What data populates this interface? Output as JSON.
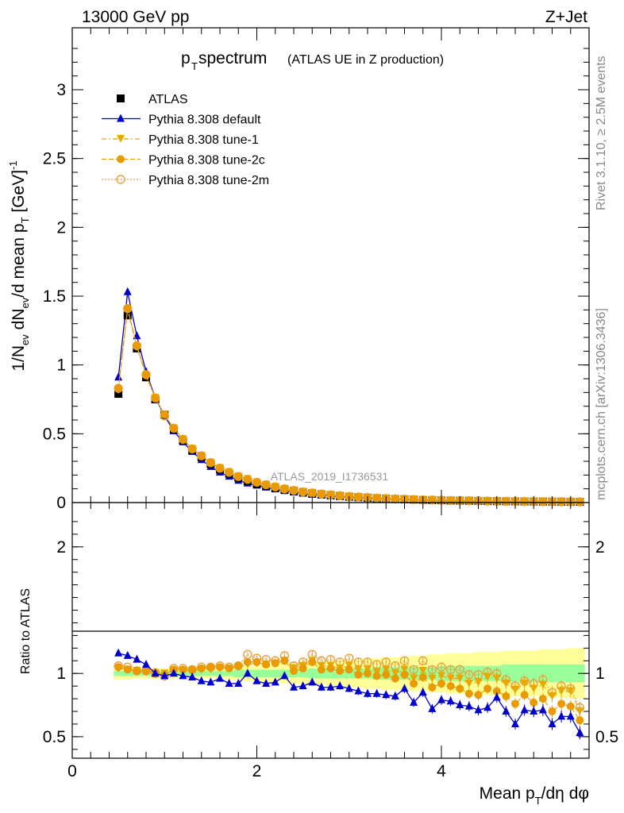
{
  "header": {
    "left": "13000 GeV pp",
    "right": "Z+Jet",
    "title_main": "p",
    "title_sub": "T",
    "title_word": " spectrum",
    "title_paren": "(ATLAS UE in Z production)"
  },
  "side": {
    "rivet": "Rivet 3.1.10, ≥ 2.5M events",
    "mcplots": "mcplots.cern.ch [arXiv:1306.3436]"
  },
  "watermark": "ATLAS_2019_I1736531",
  "axes": {
    "top_ylabel": "1/N_ev dN_ev/d mean p_T [GeV]^-1",
    "bottom_ylabel": "Ratio to ATLAS",
    "xlabel": "Mean p_T/dη dφ",
    "top_yticks": [
      "0",
      "0.5",
      "1",
      "1.5",
      "2",
      "2.5",
      "3"
    ],
    "bottom_yticks": [
      "0.5",
      "1",
      "2"
    ],
    "xticks": [
      "0",
      "2",
      "4"
    ]
  },
  "legend": [
    {
      "label": "ATLAS",
      "color": "#000000",
      "marker": "square"
    },
    {
      "label": "Pythia 8.308 default",
      "color": "#0000cc",
      "marker": "triangle-up"
    },
    {
      "label": "Pythia 8.308 tune-1",
      "color": "#e8a800",
      "marker": "triangle-down"
    },
    {
      "label": "Pythia 8.308 tune-2c",
      "color": "#e89a00",
      "marker": "circle"
    },
    {
      "label": "Pythia 8.308 tune-2m",
      "color": "#e8a040",
      "marker": "open-circle"
    }
  ],
  "chart_data": [
    {
      "type": "scatter",
      "xlim": [
        0,
        5.6
      ],
      "ylim": [
        0,
        3.45
      ],
      "x": [
        0.5,
        0.6,
        0.7,
        0.8,
        0.9,
        1.0,
        1.1,
        1.2,
        1.3,
        1.4,
        1.5,
        1.6,
        1.7,
        1.8,
        1.9,
        2.0,
        2.1,
        2.2,
        2.3,
        2.4,
        2.5,
        2.6,
        2.7,
        2.8,
        2.9,
        3.0,
        3.1,
        3.2,
        3.3,
        3.4,
        3.5,
        3.6,
        3.7,
        3.8,
        3.9,
        4.0,
        4.1,
        4.2,
        4.3,
        4.4,
        4.5,
        4.6,
        4.7,
        4.8,
        4.9,
        5.0,
        5.1,
        5.2,
        5.3,
        5.4,
        5.5
      ],
      "series": [
        {
          "name": "ATLAS",
          "values": [
            0.79,
            1.36,
            1.12,
            0.91,
            0.75,
            0.64,
            0.53,
            0.45,
            0.38,
            0.33,
            0.28,
            0.24,
            0.21,
            0.18,
            0.155,
            0.135,
            0.12,
            0.105,
            0.093,
            0.083,
            0.074,
            0.066,
            0.059,
            0.053,
            0.048,
            0.043,
            0.039,
            0.035,
            0.032,
            0.029,
            0.026,
            0.024,
            0.022,
            0.02,
            0.018,
            0.017,
            0.015,
            0.014,
            0.013,
            0.012,
            0.011,
            0.01,
            0.0095,
            0.009,
            0.0085,
            0.008,
            0.0075,
            0.007,
            0.0065,
            0.006,
            0.0055
          ]
        },
        {
          "name": "Pythia 8.308 default",
          "values": [
            0.91,
            1.53,
            1.21,
            0.95,
            0.76,
            0.63,
            0.52,
            0.44,
            0.37,
            0.31,
            0.26,
            0.22,
            0.19,
            0.16,
            0.14,
            0.125,
            0.11,
            0.097,
            0.085,
            0.074,
            0.066,
            0.058,
            0.052,
            0.046,
            0.042,
            0.037,
            0.034,
            0.03,
            0.027,
            0.025,
            0.022,
            0.02,
            0.018,
            0.016,
            0.015,
            0.013,
            0.012,
            0.011,
            0.01,
            0.009,
            0.008,
            0.0075,
            0.007,
            0.0065,
            0.006,
            0.0055,
            0.005,
            0.0045,
            0.004,
            0.0038,
            0.0035
          ]
        },
        {
          "name": "Pythia 8.308 tune-1",
          "values": [
            0.82,
            1.4,
            1.13,
            0.92,
            0.76,
            0.64,
            0.54,
            0.46,
            0.39,
            0.34,
            0.29,
            0.25,
            0.22,
            0.19,
            0.17,
            0.145,
            0.13,
            0.114,
            0.1,
            0.088,
            0.078,
            0.07,
            0.062,
            0.056,
            0.05,
            0.045,
            0.041,
            0.037,
            0.033,
            0.03,
            0.027,
            0.025,
            0.022,
            0.02,
            0.019,
            0.017,
            0.015,
            0.014,
            0.013,
            0.012,
            0.011,
            0.01,
            0.009,
            0.0085,
            0.008,
            0.0075,
            0.007,
            0.0065,
            0.006,
            0.0055,
            0.005
          ]
        },
        {
          "name": "Pythia 8.308 tune-2c",
          "values": [
            0.83,
            1.41,
            1.14,
            0.93,
            0.76,
            0.64,
            0.54,
            0.46,
            0.39,
            0.34,
            0.29,
            0.25,
            0.22,
            0.19,
            0.165,
            0.145,
            0.128,
            0.112,
            0.099,
            0.087,
            0.077,
            0.069,
            0.061,
            0.055,
            0.049,
            0.044,
            0.04,
            0.036,
            0.032,
            0.029,
            0.026,
            0.024,
            0.021,
            0.019,
            0.018,
            0.016,
            0.014,
            0.013,
            0.012,
            0.011,
            0.01,
            0.009,
            0.0085,
            0.008,
            0.0075,
            0.007,
            0.0065,
            0.006,
            0.0055,
            0.005,
            0.0045
          ]
        },
        {
          "name": "Pythia 8.308 tune-2m",
          "values": [
            0.83,
            1.41,
            1.14,
            0.93,
            0.76,
            0.63,
            0.54,
            0.46,
            0.39,
            0.34,
            0.29,
            0.25,
            0.22,
            0.19,
            0.17,
            0.148,
            0.13,
            0.114,
            0.1,
            0.088,
            0.078,
            0.07,
            0.062,
            0.056,
            0.05,
            0.045,
            0.041,
            0.037,
            0.033,
            0.03,
            0.027,
            0.025,
            0.022,
            0.02,
            0.019,
            0.017,
            0.015,
            0.014,
            0.013,
            0.012,
            0.011,
            0.01,
            0.009,
            0.0085,
            0.008,
            0.0075,
            0.007,
            0.0065,
            0.006,
            0.0055,
            0.005
          ]
        }
      ]
    },
    {
      "type": "scatter",
      "xlim": [
        0,
        5.6
      ],
      "ylim": [
        0.33,
        2.35
      ],
      "x": [
        0.5,
        0.6,
        0.7,
        0.8,
        0.9,
        1.0,
        1.1,
        1.2,
        1.3,
        1.4,
        1.5,
        1.6,
        1.7,
        1.8,
        1.9,
        2.0,
        2.1,
        2.2,
        2.3,
        2.4,
        2.5,
        2.6,
        2.7,
        2.8,
        2.9,
        3.0,
        3.1,
        3.2,
        3.3,
        3.4,
        3.5,
        3.6,
        3.7,
        3.8,
        3.9,
        4.0,
        4.1,
        4.2,
        4.3,
        4.4,
        4.5,
        4.6,
        4.7,
        4.8,
        4.9,
        5.0,
        5.1,
        5.2,
        5.3,
        5.4,
        5.5
      ],
      "band_yellow_half": [
        0.05,
        0.05,
        0.04,
        0.04,
        0.04,
        0.04,
        0.04,
        0.04,
        0.04,
        0.04,
        0.04,
        0.04,
        0.05,
        0.05,
        0.06,
        0.06,
        0.07,
        0.07,
        0.08,
        0.08,
        0.09,
        0.09,
        0.09,
        0.1,
        0.1,
        0.11,
        0.11,
        0.12,
        0.12,
        0.13,
        0.13,
        0.13,
        0.14,
        0.14,
        0.15,
        0.15,
        0.16,
        0.16,
        0.16,
        0.17,
        0.17,
        0.17,
        0.18,
        0.18,
        0.18,
        0.18,
        0.19,
        0.19,
        0.19,
        0.2,
        0.2
      ],
      "band_green_half": [
        0.02,
        0.02,
        0.02,
        0.02,
        0.02,
        0.02,
        0.02,
        0.02,
        0.02,
        0.02,
        0.02,
        0.02,
        0.02,
        0.03,
        0.03,
        0.03,
        0.03,
        0.03,
        0.03,
        0.03,
        0.03,
        0.04,
        0.04,
        0.04,
        0.04,
        0.04,
        0.04,
        0.04,
        0.05,
        0.05,
        0.05,
        0.05,
        0.05,
        0.05,
        0.05,
        0.06,
        0.06,
        0.06,
        0.06,
        0.06,
        0.06,
        0.06,
        0.07,
        0.07,
        0.07,
        0.07,
        0.07,
        0.07,
        0.07,
        0.07,
        0.07
      ],
      "series": [
        {
          "name": "Pythia 8.308 default",
          "values": [
            1.16,
            1.14,
            1.11,
            1.07,
            1.0,
            0.98,
            1.0,
            0.98,
            0.97,
            0.94,
            0.93,
            0.96,
            0.92,
            0.92,
            1.0,
            0.94,
            0.92,
            0.93,
            0.98,
            0.89,
            0.9,
            0.93,
            0.89,
            0.89,
            0.9,
            0.88,
            0.86,
            0.84,
            0.84,
            0.83,
            0.82,
            0.88,
            0.77,
            0.85,
            0.72,
            0.79,
            0.78,
            0.75,
            0.74,
            0.71,
            0.73,
            0.81,
            0.7,
            0.6,
            0.71,
            0.7,
            0.71,
            0.6,
            0.66,
            0.66,
            0.53
          ]
        },
        {
          "name": "Pythia 8.308 tune-1",
          "values": [
            1.04,
            1.03,
            1.02,
            1.02,
            1.0,
            1.0,
            1.02,
            1.02,
            1.02,
            1.03,
            1.03,
            1.04,
            1.04,
            1.05,
            1.07,
            1.08,
            1.07,
            1.08,
            1.1,
            1.04,
            1.06,
            1.1,
            1.06,
            1.06,
            1.04,
            1.06,
            1.03,
            1.03,
            1.01,
            1.03,
            1.0,
            1.03,
            0.96,
            1.02,
            0.96,
            0.98,
            0.96,
            0.96,
            0.92,
            0.93,
            0.97,
            0.96,
            0.92,
            0.87,
            0.92,
            0.88,
            0.91,
            0.82,
            0.86,
            0.86,
            0.7
          ]
        },
        {
          "name": "Pythia 8.308 tune-2c",
          "values": [
            1.05,
            1.03,
            1.02,
            1.02,
            1.01,
            0.99,
            1.03,
            1.03,
            1.03,
            1.04,
            1.05,
            1.05,
            1.04,
            1.06,
            1.09,
            1.09,
            1.07,
            1.08,
            1.1,
            1.02,
            1.04,
            1.09,
            1.03,
            1.04,
            1.02,
            1.03,
            0.99,
            1.0,
            0.98,
            0.99,
            0.96,
            0.99,
            0.92,
            0.97,
            0.89,
            0.92,
            0.9,
            0.88,
            0.84,
            0.83,
            0.88,
            0.86,
            0.82,
            0.76,
            0.83,
            0.77,
            0.8,
            0.7,
            0.76,
            0.74,
            0.63
          ]
        },
        {
          "name": "Pythia 8.308 tune-2m",
          "values": [
            1.06,
            1.05,
            1.02,
            1.02,
            1.0,
            0.98,
            1.04,
            1.04,
            1.03,
            1.05,
            1.05,
            1.06,
            1.05,
            1.06,
            1.15,
            1.12,
            1.11,
            1.1,
            1.14,
            1.06,
            1.09,
            1.15,
            1.1,
            1.11,
            1.09,
            1.12,
            1.09,
            1.09,
            1.07,
            1.09,
            1.06,
            1.1,
            1.03,
            1.1,
            1.03,
            1.05,
            1.03,
            1.03,
            0.99,
            0.99,
            1.01,
            1.0,
            0.95,
            0.9,
            0.94,
            0.92,
            0.95,
            0.85,
            0.9,
            0.88,
            0.73
          ]
        }
      ]
    }
  ]
}
